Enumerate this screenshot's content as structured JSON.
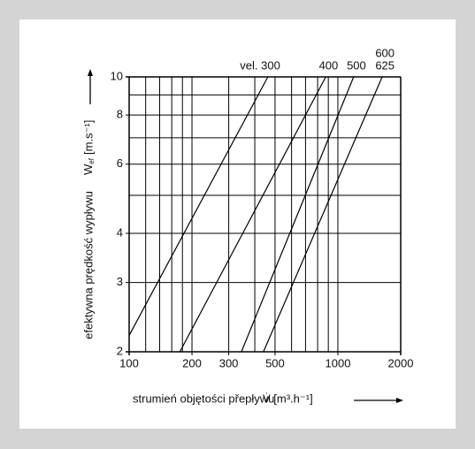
{
  "chart_data": {
    "type": "line",
    "xlabel": "strumień objętości přepływu",
    "xunit": "V̇ [m³.h⁻¹]",
    "ylabel": "efektywna prędkość wypływu",
    "ysymbol": "W",
    "ysymbol_sub": "ef",
    "yunit": "[m.s⁻¹]",
    "xscale": "log",
    "yscale": "log",
    "grid": true,
    "xlim": [
      100,
      2000
    ],
    "ylim": [
      2,
      10
    ],
    "xticks": [
      100,
      200,
      300,
      500,
      1000,
      2000
    ],
    "xgrid": [
      120,
      140,
      160,
      180,
      400,
      600,
      700,
      800,
      900
    ],
    "yticks": [
      2,
      3,
      4,
      6,
      8,
      10
    ],
    "ygrid": [
      5,
      7,
      9
    ],
    "color": "#000000",
    "series": [
      {
        "name": "vel. 300",
        "x": [
          100,
          462
        ],
        "values": [
          2.2,
          10
        ]
      },
      {
        "name": "400",
        "x": [
          175,
          875
        ],
        "values": [
          2,
          10
        ]
      },
      {
        "name": "500",
        "x": [
          345,
          1190
        ],
        "values": [
          2,
          10
        ]
      },
      {
        "name": "625",
        "x": [
          440,
          1630
        ],
        "values": [
          2,
          10
        ]
      }
    ],
    "annotations": [
      "600"
    ]
  }
}
